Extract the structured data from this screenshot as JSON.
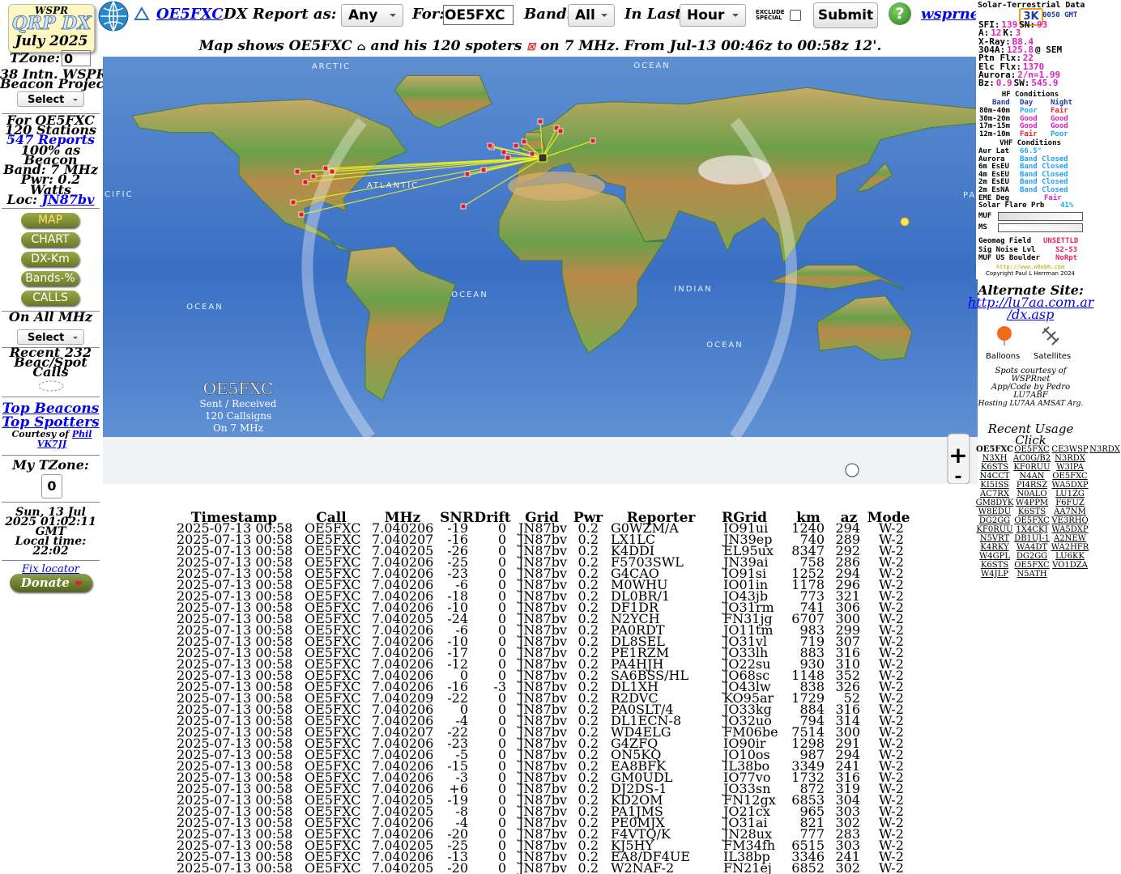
{
  "header": {
    "logo_top": "WSPR",
    "logo_main": "QRP DX",
    "logo_date": "July 2025",
    "call_link": "OE5FXC",
    "report_label": "DX Report as:",
    "report_select": "Any",
    "for_label": "For:",
    "for_value": "OE5FXC",
    "band_label": "Band:",
    "band_select": "All",
    "last_label": "In Last:",
    "last_select": "Hour",
    "exclude_1": "EXCLUDE",
    "exclude_2": "SPECIAL",
    "submit": "Submit",
    "help": "?",
    "site_link": "wsprnet.org"
  },
  "sidebar": {
    "tzone_label": "TZone:",
    "tzone_value": "0",
    "project_1": "38 Intn. WSPR",
    "project_2": "Beacon Project",
    "select_1": "Select",
    "for_call": "For OE5FXC",
    "stations": "120 Stations",
    "reports": "547 Reports",
    "beacon_1": "100% as",
    "beacon_2": "Beacon",
    "band": "Band: 7 MHz",
    "pwr": "Pwr: 0.2",
    "watts": "Watts",
    "loc_label": "Loc:",
    "loc_value": "JN87bv",
    "nav": [
      "MAP",
      "CHART",
      "DX-Km",
      "Bands-%",
      "CALLS"
    ],
    "all_mhz": "On All MHz",
    "select_2": "Select",
    "recent_1": "Recent 232",
    "recent_2": "Beac/Spot",
    "recent_3": "Calls",
    "top_beacons": "Top Beacons",
    "top_spotters": "Top Spotters",
    "courtesy": "Courtesy of",
    "courtesy_link": "Phil VK7JJ",
    "my_tzone": "My TZone:",
    "my_tzone_value": "0",
    "date_1": "Sun, 13 Jul",
    "date_2": "2025 01:02:11",
    "date_3": "GMT",
    "local_label": "Local time:",
    "local_time": "22:02",
    "fix_locator": "Fix locator",
    "donate": "Donate"
  },
  "map": {
    "caption_1": "Map shows OE5FXC",
    "caption_2": "and his 120 spoters",
    "caption_3": "on 7 MHz. From Jul-13 00:46z to 00:58z 12'.",
    "ocean_labels": [
      "ARCTIC",
      "OCEAN",
      "CIFIC",
      "ATLANTIC",
      "OCEAN",
      "INDIAN",
      "OCEAN",
      "OCEAN",
      "PA"
    ],
    "legend": [
      "OE5FXC",
      "Sent / Received",
      "120 Callsigns",
      "On 7 MHz"
    ],
    "zoom_in": "+",
    "zoom_out": "-"
  },
  "solar": {
    "title": "Solar-Terrestrial Data",
    "badge": "3K",
    "time": "0050 GMT",
    "stats": [
      [
        "SFI:",
        "139",
        "SN:",
        "93"
      ],
      [
        "A:",
        "12",
        "K:",
        "3"
      ],
      [
        "X-Ray:",
        "B8.4"
      ],
      [
        "304A:",
        "125.8",
        "@ SEM"
      ],
      [
        "Ptn Flx:",
        "22"
      ],
      [
        "Elc Flx:",
        "1370"
      ],
      [
        "Aurora:",
        "2/n=1.99"
      ],
      [
        "Bz:",
        "0.9",
        "SW:",
        "545.9"
      ]
    ],
    "hf_title": "HF Conditions",
    "hf_header": [
      "Band",
      "Day",
      "Night"
    ],
    "hf_rows": [
      [
        "80m-40m",
        "Poor",
        "Fair"
      ],
      [
        "30m-20m",
        "Good",
        "Good"
      ],
      [
        "17m-15m",
        "Good",
        "Good"
      ],
      [
        "12m-10m",
        "Fair",
        "Poor"
      ]
    ],
    "vhf_title": "VHF Conditions",
    "vhf_rows": [
      [
        "Aur Lat",
        "66.5°"
      ],
      [
        "Aurora",
        "Band Closed"
      ],
      [
        "6m EsEU",
        "Band Closed"
      ],
      [
        "4m EsEU",
        "Band Closed"
      ],
      [
        "2m EsEU",
        "Band Closed"
      ],
      [
        "2m EsNA",
        "Band Closed"
      ],
      [
        "EME Deg",
        "Fair"
      ],
      [
        "Solar Flare Prb",
        "41%"
      ]
    ],
    "muf": "MUF",
    "ms": "MS",
    "bottom_rows": [
      [
        "Geomag Field",
        "UNSETTLD"
      ],
      [
        "Sig Noise Lvl",
        "S2-S3"
      ],
      [
        "MUF US Boulder",
        "NoRpt"
      ]
    ],
    "url": "http://www.n0nbh.com",
    "copyright": "Copyright Paul L Herrman 2024"
  },
  "right": {
    "alt_label": "Alternate Site:",
    "alt_link_1": "http://lu7aa.com.ar",
    "alt_link_2": "/dx.asp",
    "balloons": "Balloons",
    "satellites": "Satellites",
    "credit_1": "Spots courtesy of",
    "credit_2": "WSPRnet",
    "credit_3": "App/Code by Pedro",
    "credit_4": "LU7ABF",
    "credit_5": "Hosting LU7AA AMSAT Arg.",
    "usage_title": "Recent Usage",
    "usage_click": "Click",
    "calls": [
      [
        "OE5FXC",
        "OE5FXC",
        "CE3WSP",
        "N3RDX"
      ],
      [
        "N3XH",
        "AC0G/B2",
        "N3RDX"
      ],
      [
        "K6STS",
        "KF0RUU",
        "W3IPA"
      ],
      [
        "N4CCT",
        "N4AN",
        "OE5FXC"
      ],
      [
        "KI5ISS",
        "PI4RSZ",
        "WA5DXP"
      ],
      [
        "AC7RX",
        "N0ALO",
        "LU1ZG"
      ],
      [
        "GM8DYK",
        "W4PPM",
        "F6FUZ"
      ],
      [
        "W8EDU",
        "K6STS",
        "AA7NM"
      ],
      [
        "DG2GG",
        "OE5FXC",
        "VE3RHQ"
      ],
      [
        "KF0RUU",
        "1X4CKJ",
        "WA5DXP"
      ],
      [
        "N5VRT",
        "DB1UJ-1",
        "A2NEW"
      ],
      [
        "K4RKY",
        "WA4DT",
        "WA2HFR"
      ],
      [
        "W4GPL",
        "DG2GG",
        "LU6KK"
      ],
      [
        "K6STS",
        "OE5FXC",
        "VO1DZA"
      ],
      [
        "W4JLP",
        "N5ATH"
      ]
    ]
  },
  "table": {
    "headers": [
      "Timestamp",
      "Call",
      "MHz",
      "SNR",
      "Drift",
      "Grid",
      "Pwr",
      "Reporter",
      "RGrid",
      "km",
      "az",
      "Mode"
    ],
    "rows": [
      [
        "2025-07-13 00:58",
        "OE5FXC",
        "7.040206",
        "-19",
        "0",
        "JN87bv",
        "0.2",
        "G0WZM/A",
        "IO91ui",
        "1240",
        "294",
        "W-2"
      ],
      [
        "2025-07-13 00:58",
        "OE5FXC",
        "7.040207",
        "-16",
        "0",
        "JN87bv",
        "0.2",
        "LX1LC",
        "JN39ep",
        "740",
        "289",
        "W-2"
      ],
      [
        "2025-07-13 00:58",
        "OE5FXC",
        "7.040205",
        "-26",
        "0",
        "JN87bv",
        "0.2",
        "K4DDI",
        "EL95ux",
        "8347",
        "292",
        "W-2"
      ],
      [
        "2025-07-13 00:58",
        "OE5FXC",
        "7.040206",
        "-25",
        "0",
        "JN87bv",
        "0.2",
        "F5703SWL",
        "JN39ai",
        "758",
        "286",
        "W-2"
      ],
      [
        "2025-07-13 00:58",
        "OE5FXC",
        "7.040206",
        "-23",
        "0",
        "JN87bv",
        "0.2",
        "G4CAO",
        "IO91si",
        "1252",
        "294",
        "W-2"
      ],
      [
        "2025-07-13 00:58",
        "OE5FXC",
        "7.040206",
        "-6",
        "0",
        "JN87bv",
        "0.2",
        "M0WHU",
        "IO01in",
        "1178",
        "296",
        "W-2"
      ],
      [
        "2025-07-13 00:58",
        "OE5FXC",
        "7.040206",
        "-18",
        "0",
        "JN87bv",
        "0.2",
        "DL0BR/1",
        "JO43jb",
        "773",
        "321",
        "W-2"
      ],
      [
        "2025-07-13 00:58",
        "OE5FXC",
        "7.040206",
        "-10",
        "0",
        "JN87bv",
        "0.2",
        "DF1DR",
        "JO31rm",
        "741",
        "306",
        "W-2"
      ],
      [
        "2025-07-13 00:58",
        "OE5FXC",
        "7.040205",
        "-24",
        "0",
        "JN87bv",
        "0.2",
        "N2YCH",
        "FN31jg",
        "6707",
        "300",
        "W-2"
      ],
      [
        "2025-07-13 00:58",
        "OE5FXC",
        "7.040206",
        "-6",
        "0",
        "JN87bv",
        "0.2",
        "PA0RDT",
        "JO11tm",
        "983",
        "299",
        "W-2"
      ],
      [
        "2025-07-13 00:58",
        "OE5FXC",
        "7.040206",
        "-10",
        "0",
        "JN87bv",
        "0.2",
        "DL8SEL",
        "JO31vl",
        "719",
        "307",
        "W-2"
      ],
      [
        "2025-07-13 00:58",
        "OE5FXC",
        "7.040206",
        "-17",
        "0",
        "JN87bv",
        "0.2",
        "PE1RZM",
        "JO33lh",
        "883",
        "316",
        "W-2"
      ],
      [
        "2025-07-13 00:58",
        "OE5FXC",
        "7.040206",
        "-12",
        "0",
        "JN87bv",
        "0.2",
        "PA4HJH",
        "JO22su",
        "930",
        "310",
        "W-2"
      ],
      [
        "2025-07-13 00:58",
        "OE5FXC",
        "7.040206",
        "0",
        "0",
        "JN87bv",
        "0.2",
        "SA6BSS/HL",
        "JO68sc",
        "1148",
        "352",
        "W-2"
      ],
      [
        "2025-07-13 00:58",
        "OE5FXC",
        "7.040206",
        "-16",
        "-3",
        "JN87bv",
        "0.2",
        "DL1XH",
        "JO43lw",
        "838",
        "326",
        "W-2"
      ],
      [
        "2025-07-13 00:58",
        "OE5FXC",
        "7.040209",
        "-22",
        "0",
        "JN87bv",
        "0.2",
        "R2DVC",
        "KO95ar",
        "1729",
        "52",
        "W-2"
      ],
      [
        "2025-07-13 00:58",
        "OE5FXC",
        "7.040206",
        "0",
        "0",
        "JN87bv",
        "0.2",
        "PA0SLT/4",
        "JO33kg",
        "884",
        "316",
        "W-2"
      ],
      [
        "2025-07-13 00:58",
        "OE5FXC",
        "7.040206",
        "-4",
        "0",
        "JN87bv",
        "0.2",
        "DL1ECN-8",
        "JO32uo",
        "794",
        "314",
        "W-2"
      ],
      [
        "2025-07-13 00:58",
        "OE5FXC",
        "7.040207",
        "-22",
        "0",
        "JN87bv",
        "0.2",
        "WD4ELG",
        "FM06be",
        "7514",
        "300",
        "W-2"
      ],
      [
        "2025-07-13 00:58",
        "OE5FXC",
        "7.040206",
        "-23",
        "0",
        "JN87bv",
        "0.2",
        "G4ZFQ",
        "IO90ir",
        "1298",
        "291",
        "W-2"
      ],
      [
        "2025-07-13 00:58",
        "OE5FXC",
        "7.040206",
        "-5",
        "0",
        "JN87bv",
        "0.2",
        "ON5KQ",
        "JO10os",
        "987",
        "294",
        "W-2"
      ],
      [
        "2025-07-13 00:58",
        "OE5FXC",
        "7.040206",
        "-15",
        "0",
        "JN87bv",
        "0.2",
        "EA8BFK",
        "IL38bo",
        "3349",
        "241",
        "W-2"
      ],
      [
        "2025-07-13 00:58",
        "OE5FXC",
        "7.040206",
        "-3",
        "0",
        "JN87bv",
        "0.2",
        "GM0UDL",
        "IO77vo",
        "1732",
        "316",
        "W-2"
      ],
      [
        "2025-07-13 00:58",
        "OE5FXC",
        "7.040206",
        "+6",
        "0",
        "JN87bv",
        "0.2",
        "DJ2DS-1",
        "JO33sn",
        "872",
        "319",
        "W-2"
      ],
      [
        "2025-07-13 00:58",
        "OE5FXC",
        "7.040205",
        "-19",
        "0",
        "JN87bv",
        "0.2",
        "KD2OM",
        "FN12gx",
        "6853",
        "304",
        "W-2"
      ],
      [
        "2025-07-13 00:58",
        "OE5FXC",
        "7.040205",
        "-8",
        "0",
        "JN87bv",
        "0.2",
        "PA1JMS",
        "JO21cx",
        "965",
        "303",
        "W-2"
      ],
      [
        "2025-07-13 00:58",
        "OE5FXC",
        "7.040206",
        "-4",
        "0",
        "JN87bv",
        "0.2",
        "PE0MJX",
        "JO31ai",
        "821",
        "302",
        "W-2"
      ],
      [
        "2025-07-13 00:58",
        "OE5FXC",
        "7.040206",
        "-20",
        "0",
        "JN87bv",
        "0.2",
        "F4VTQ/K",
        "JN28ux",
        "777",
        "283",
        "W-2"
      ],
      [
        "2025-07-13 00:58",
        "OE5FXC",
        "7.040205",
        "-25",
        "0",
        "JN87bv",
        "0.2",
        "KJ5HY",
        "FM34fh",
        "6515",
        "303",
        "W-2"
      ],
      [
        "2025-07-13 00:58",
        "OE5FXC",
        "7.040206",
        "-13",
        "0",
        "JN87bv",
        "0.2",
        "EA8/DF4UE",
        "IL38bp",
        "3346",
        "241",
        "W-2"
      ],
      [
        "2025-07-13 00:58",
        "OE5FXC",
        "7.040205",
        "-20",
        "0",
        "JN87bv",
        "0.2",
        "W2NAF-2",
        "FN21ej",
        "6852",
        "302",
        "W-2"
      ]
    ]
  }
}
